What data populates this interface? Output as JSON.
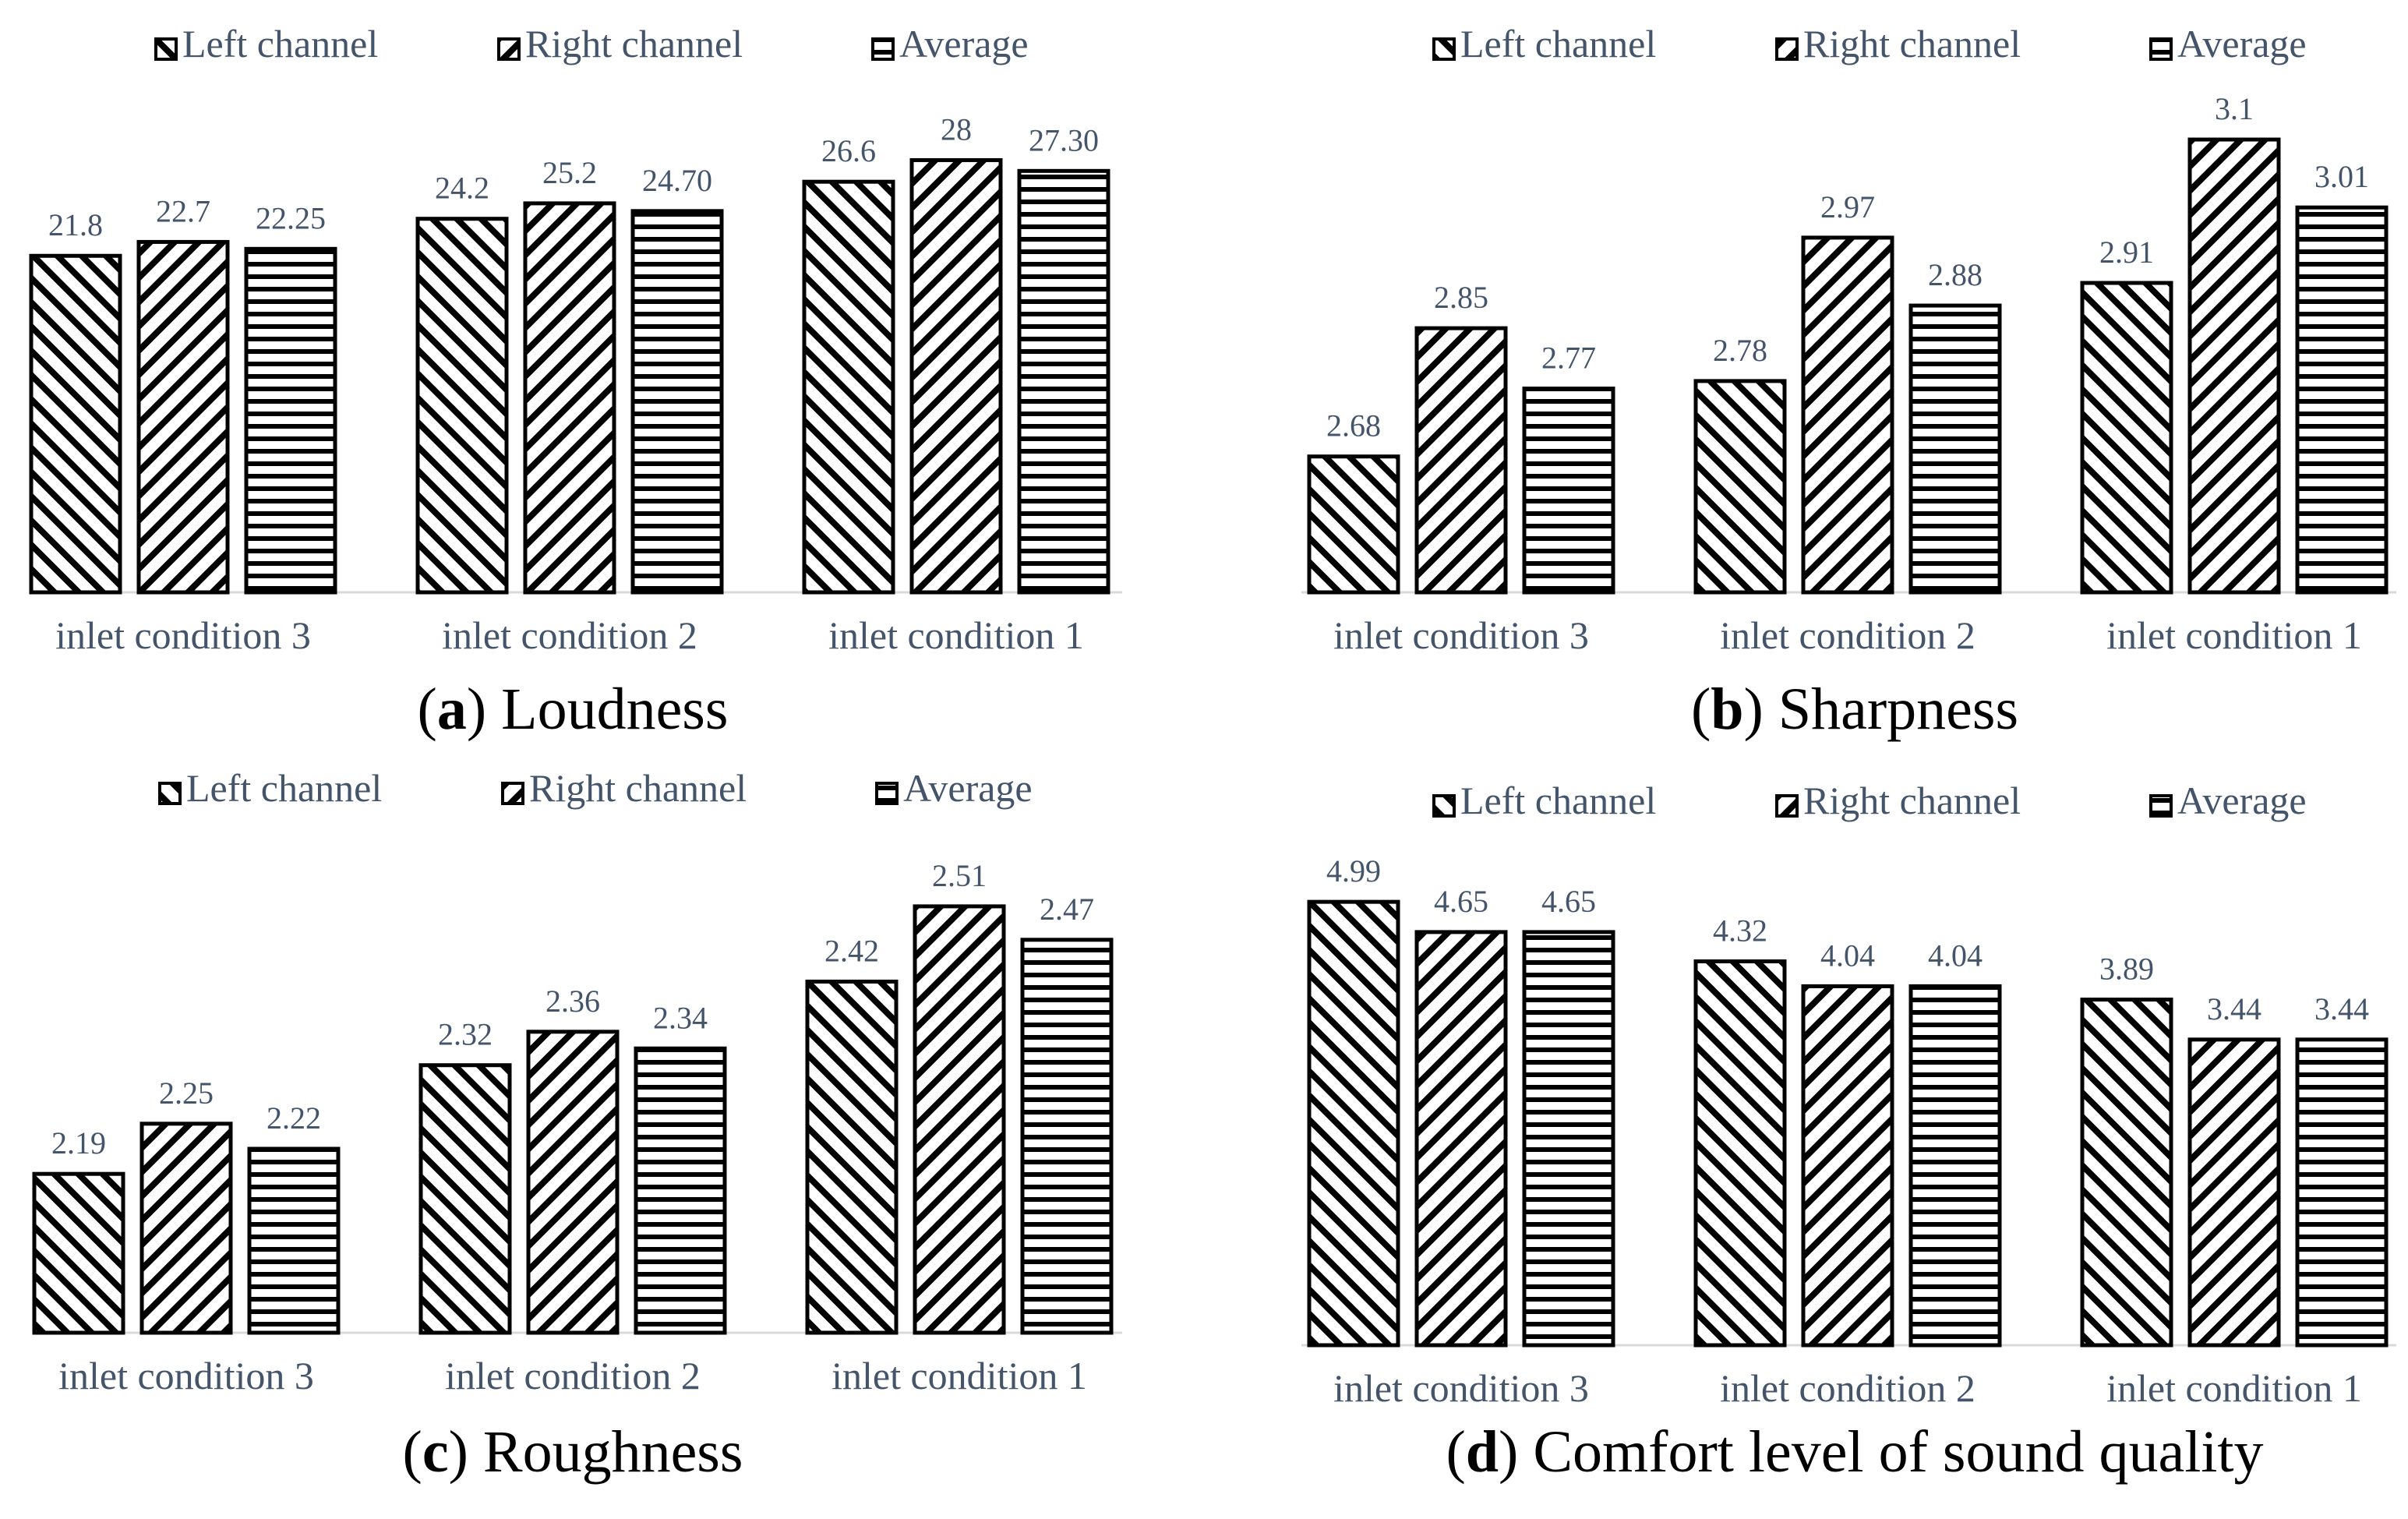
{
  "colors": {
    "text": "#44546a",
    "bar_stroke": "#000000",
    "axis": "#d9d9d9",
    "caption": "#000000"
  },
  "legend_icons": [
    "back-diagonal-hatch-icon",
    "forward-diagonal-hatch-icon",
    "horizontal-hatch-icon"
  ],
  "chart_data": [
    {
      "type": "bar",
      "panel": "a",
      "caption_letter": "a",
      "title": "Loudness",
      "categories": [
        "inlet condition 3",
        "inlet condition 2",
        "inlet condition 1"
      ],
      "series": [
        {
          "name": "Left channel",
          "values": [
            21.8,
            24.2,
            26.6
          ],
          "labels": [
            "21.8",
            "24.2",
            "26.6"
          ]
        },
        {
          "name": "Right channel",
          "values": [
            22.7,
            25.2,
            28
          ],
          "labels": [
            "22.7",
            "25.2",
            "28"
          ]
        },
        {
          "name": "Average",
          "values": [
            22.25,
            24.7,
            27.3
          ],
          "labels": [
            "22.25",
            "24.70",
            "27.30"
          ]
        }
      ],
      "legend_position": "top",
      "ylim": [
        0,
        30.8
      ],
      "xlabel": "",
      "ylabel": "",
      "grid": false
    },
    {
      "type": "bar",
      "panel": "b",
      "caption_letter": "b",
      "title": "Sharpness",
      "categories": [
        "inlet condition 3",
        "inlet condition 2",
        "inlet condition 1"
      ],
      "series": [
        {
          "name": "Left channel",
          "values": [
            2.68,
            2.78,
            2.91
          ],
          "labels": [
            "2.68",
            "2.78",
            "2.91"
          ]
        },
        {
          "name": "Right channel",
          "values": [
            2.85,
            2.97,
            3.1
          ],
          "labels": [
            "2.85",
            "2.97",
            "3.1"
          ]
        },
        {
          "name": "Average",
          "values": [
            2.77,
            2.88,
            3.01
          ],
          "labels": [
            "2.77",
            "2.88",
            "3.01"
          ]
        }
      ],
      "legend_position": "top",
      "ylim": [
        2.5,
        3.13
      ],
      "xlabel": "",
      "ylabel": "",
      "grid": false
    },
    {
      "type": "bar",
      "panel": "c",
      "caption_letter": "c",
      "title": "Roughness",
      "categories": [
        "inlet condition 3",
        "inlet condition 2",
        "inlet condition 1"
      ],
      "series": [
        {
          "name": "Left channel",
          "values": [
            2.19,
            2.32,
            2.42
          ],
          "labels": [
            "2.19",
            "2.32",
            "2.42"
          ]
        },
        {
          "name": "Right channel",
          "values": [
            2.25,
            2.36,
            2.51
          ],
          "labels": [
            "2.25",
            "2.36",
            "2.51"
          ]
        },
        {
          "name": "Average",
          "values": [
            2.22,
            2.34,
            2.47
          ],
          "labels": [
            "2.22",
            "2.34",
            "2.47"
          ]
        }
      ],
      "legend_position": "top",
      "ylim": [
        2.0,
        2.55
      ],
      "xlabel": "",
      "ylabel": "",
      "grid": false
    },
    {
      "type": "bar",
      "panel": "d",
      "caption_letter": "d",
      "title": "Comfort level of sound quality",
      "categories": [
        "inlet condition 3",
        "inlet condition 2",
        "inlet condition 1"
      ],
      "series": [
        {
          "name": "Left channel",
          "values": [
            4.99,
            4.32,
            3.89
          ],
          "labels": [
            "4.99",
            "4.32",
            "3.89"
          ]
        },
        {
          "name": "Right channel",
          "values": [
            4.65,
            4.04,
            3.44
          ],
          "labels": [
            "4.65",
            "4.04",
            "3.44"
          ]
        },
        {
          "name": "Average",
          "values": [
            4.65,
            4.04,
            3.44
          ],
          "labels": [
            "4.65",
            "4.04",
            "3.44"
          ]
        }
      ],
      "legend_position": "top",
      "ylim": [
        0,
        5.5
      ],
      "xlabel": "",
      "ylabel": "",
      "grid": false
    }
  ]
}
